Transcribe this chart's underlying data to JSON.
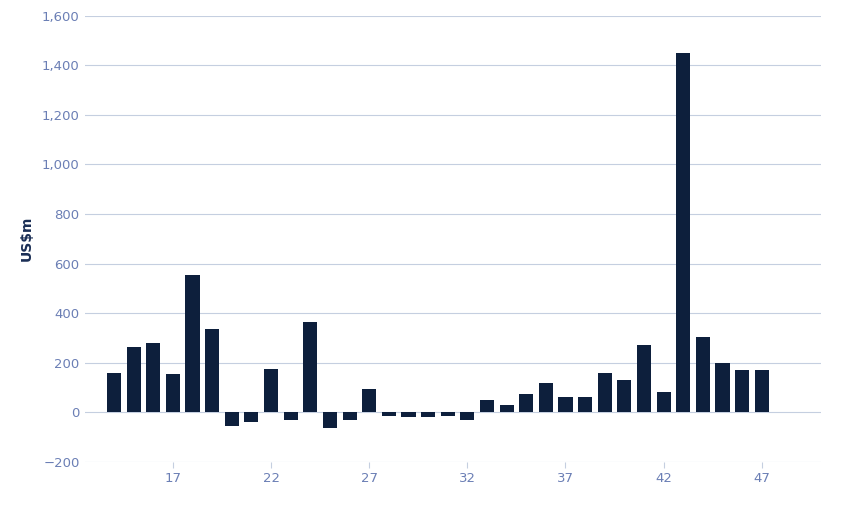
{
  "xlabel": "",
  "ylabel": "US$m",
  "bar_color": "#0d1f3c",
  "background_color": "#ffffff",
  "grid_color": "#c5cfe0",
  "text_color": "#6b7fb5",
  "axis_label_color": "#1a2e55",
  "ylim": [
    -200,
    1600
  ],
  "yticks": [
    -200,
    0,
    200,
    400,
    600,
    800,
    1000,
    1200,
    1400,
    1600
  ],
  "xticks": [
    17,
    22,
    27,
    32,
    37,
    42,
    47
  ],
  "weeks": [
    14,
    15,
    16,
    17,
    18,
    19,
    20,
    21,
    22,
    23,
    24,
    25,
    26,
    27,
    28,
    29,
    30,
    31,
    32,
    33,
    34,
    35,
    36,
    37,
    38,
    39,
    40,
    41,
    42,
    43,
    44,
    45,
    46,
    47
  ],
  "values": [
    160,
    265,
    280,
    155,
    555,
    335,
    -55,
    -40,
    175,
    -30,
    365,
    -65,
    -30,
    95,
    -15,
    -20,
    -20,
    -15,
    -30,
    50,
    30,
    75,
    120,
    60,
    60,
    160,
    130,
    270,
    80,
    1450,
    305,
    200,
    170,
    170
  ]
}
